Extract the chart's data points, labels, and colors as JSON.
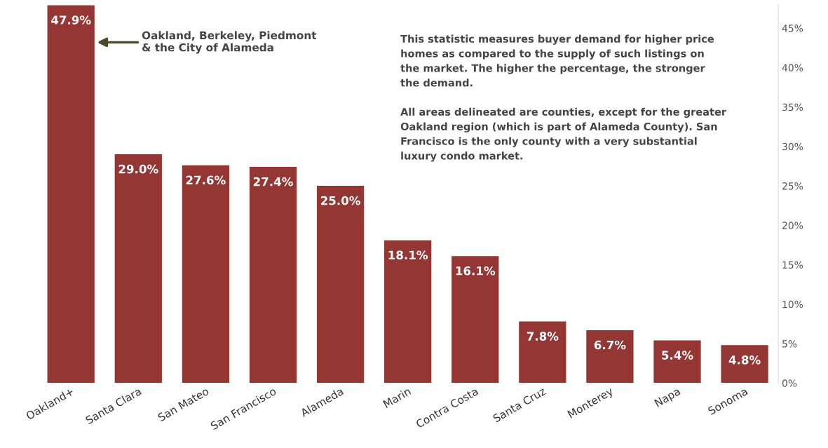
{
  "chart_data": {
    "type": "bar",
    "categories": [
      "Oakland+",
      "Santa Clara",
      "San Mateo",
      "San Francisco",
      "Alameda",
      "Marin",
      "Contra Costa",
      "Santa Cruz",
      "Monterey",
      "Napa",
      "Sonoma"
    ],
    "values": [
      47.9,
      29.0,
      27.6,
      27.4,
      25.0,
      18.1,
      16.1,
      7.8,
      6.7,
      5.4,
      4.8
    ],
    "value_labels": [
      "47.9%",
      "29.0%",
      "27.6%",
      "27.4%",
      "25.0%",
      "18.1%",
      "16.1%",
      "7.8%",
      "6.7%",
      "5.4%",
      "4.8%"
    ],
    "color": "#943634",
    "ylim": [
      0,
      48
    ],
    "yticks": [
      {
        "value": 0,
        "label": "0%"
      },
      {
        "value": 5,
        "label": "5%"
      },
      {
        "value": 10,
        "label": "10%"
      },
      {
        "value": 15,
        "label": "15%"
      },
      {
        "value": 20,
        "label": "20%"
      },
      {
        "value": 25,
        "label": "25%"
      },
      {
        "value": 30,
        "label": "30%"
      },
      {
        "value": 35,
        "label": "35%"
      },
      {
        "value": 40,
        "label": "40%"
      },
      {
        "value": 45,
        "label": "45%"
      }
    ],
    "grid": false,
    "legend": false,
    "annotations": [
      "Oakland, Berkeley, Piedmont\n& the City of Alameda",
      "This statistic measures buyer demand for higher price\nhomes as compared to the supply of such listings on\nthe market. The higher the percentage, the stronger\nthe demand.\n\nAll areas delineated are counties, except for the greater\nOakland region (which is part of Alameda County). San\nFrancisco is the only county with a very substantial\nluxury condo market."
    ]
  }
}
